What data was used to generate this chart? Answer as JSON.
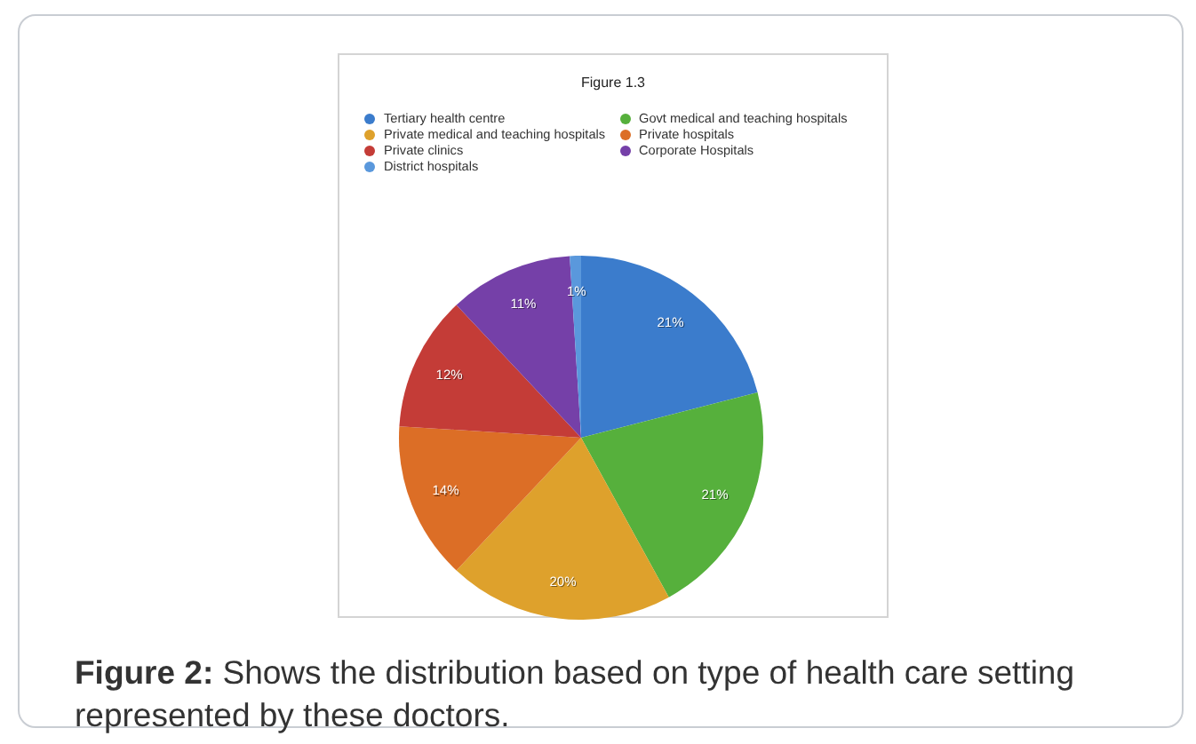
{
  "chart_data": {
    "type": "pie",
    "title": "Figure 1.3",
    "categories": [
      "Tertiary health centre",
      "Govt medical and teaching hospitals",
      "Private medical and teaching hospitals",
      "Private hospitals",
      "Private clinics",
      "Corporate Hospitals",
      "District hospitals"
    ],
    "values": [
      21,
      21,
      20,
      14,
      12,
      11,
      1
    ],
    "colors": [
      "#3b7ccc",
      "#56b03c",
      "#dea12c",
      "#dc6e26",
      "#c43c37",
      "#7540a8",
      "#5a98dc"
    ],
    "value_labels": [
      "21%",
      "21%",
      "20%",
      "14%",
      "12%",
      "11%",
      "1%"
    ],
    "legend": "top",
    "annotations": [
      "Figure 2: Shows the distribution based on type of health care setting represented by these doctors."
    ]
  }
}
